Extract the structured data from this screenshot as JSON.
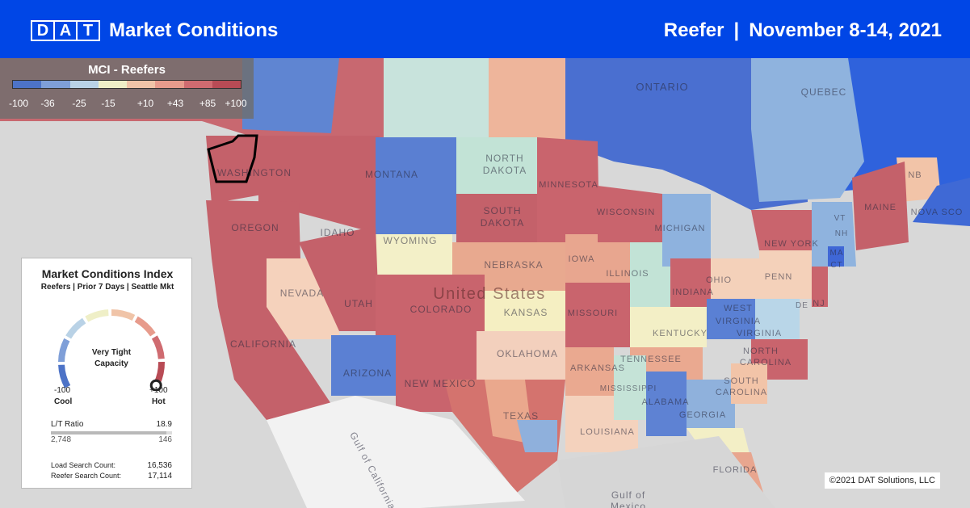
{
  "header": {
    "logo_letters": [
      "D",
      "A",
      "T"
    ],
    "title": "Market Conditions",
    "equipment": "Reefer",
    "separator": "|",
    "date_range": "November 8-14, 2021"
  },
  "legend": {
    "title": "MCI - Reefers",
    "ticks": [
      "-100",
      "-36",
      "-25",
      "-15",
      "+10",
      "+43",
      "+85",
      "+100"
    ],
    "colors": [
      "#4d73c7",
      "#7f9fd8",
      "#b9d2e6",
      "#efefc7",
      "#f0c4a8",
      "#e79b8c",
      "#cf6b70",
      "#b84b55"
    ]
  },
  "map": {
    "labels": [
      {
        "text": "ONTARIO",
        "size": 13
      },
      {
        "text": "QUEBEC",
        "size": 12
      },
      {
        "text": "NORTH",
        "size": 12
      },
      {
        "text": "DAKOTA",
        "size": 12
      },
      {
        "text": "WASHINGTON",
        "size": 12
      },
      {
        "text": "MONTANA",
        "size": 12
      },
      {
        "text": "MINNESOTA",
        "size": 11
      },
      {
        "text": "SOUTH",
        "size": 12
      },
      {
        "text": "DAKOTA",
        "size": 12
      },
      {
        "text": "WISCONSIN",
        "size": 11
      },
      {
        "text": "MICHIGAN",
        "size": 11
      },
      {
        "text": "NB",
        "size": 11
      },
      {
        "text": "MAINE",
        "size": 11
      },
      {
        "text": "NOVA SCO",
        "size": 11
      },
      {
        "text": "VT",
        "size": 10
      },
      {
        "text": "NH",
        "size": 10
      },
      {
        "text": "MA",
        "size": 10
      },
      {
        "text": "CT",
        "size": 10
      },
      {
        "text": "NEW YORK",
        "size": 11
      },
      {
        "text": "OREGON",
        "size": 12
      },
      {
        "text": "IDAHO",
        "size": 12
      },
      {
        "text": "WYOMING",
        "size": 12
      },
      {
        "text": "NEBRASKA",
        "size": 12
      },
      {
        "text": "IOWA",
        "size": 11
      },
      {
        "text": "ILLINOIS",
        "size": 11
      },
      {
        "text": "INDIANA",
        "size": 11
      },
      {
        "text": "OHIO",
        "size": 11
      },
      {
        "text": "PENN",
        "size": 11
      },
      {
        "text": "NJ",
        "size": 11
      },
      {
        "text": "DE",
        "size": 10
      },
      {
        "text": "NEVADA",
        "size": 12
      },
      {
        "text": "UTAH",
        "size": 12
      },
      {
        "text": "COLORADO",
        "size": 12
      },
      {
        "text": "United States",
        "size": 20
      },
      {
        "text": "KANSAS",
        "size": 12
      },
      {
        "text": "MISSOURI",
        "size": 11
      },
      {
        "text": "WEST",
        "size": 11
      },
      {
        "text": "VIRGINIA",
        "size": 11
      },
      {
        "text": "VIRGINIA",
        "size": 11
      },
      {
        "text": "KENTUCKY",
        "size": 11
      },
      {
        "text": "NORTH",
        "size": 11
      },
      {
        "text": "CAROLINA",
        "size": 11
      },
      {
        "text": "CALIFORNIA",
        "size": 12
      },
      {
        "text": "ARIZONA",
        "size": 12
      },
      {
        "text": "NEW MEXICO",
        "size": 12
      },
      {
        "text": "OKLAHOMA",
        "size": 12
      },
      {
        "text": "ARKANSAS",
        "size": 11
      },
      {
        "text": "TENNESSEE",
        "size": 11
      },
      {
        "text": "SOUTH",
        "size": 11
      },
      {
        "text": "CAROLINA",
        "size": 11
      },
      {
        "text": "MISSISSIPPI",
        "size": 10
      },
      {
        "text": "ALABAMA",
        "size": 11
      },
      {
        "text": "GEORGIA",
        "size": 11
      },
      {
        "text": "TEXAS",
        "size": 12
      },
      {
        "text": "LOUISIANA",
        "size": 11
      },
      {
        "text": "FLORIDA",
        "size": 11
      },
      {
        "text": "Gulf of California",
        "size": 12
      },
      {
        "text": "Gulf of",
        "size": 12
      },
      {
        "text": "Mexico",
        "size": 12
      }
    ]
  },
  "copyright": "©2021 DAT Solutions, LLC",
  "panel": {
    "title": "Market Conditions Index",
    "subtitle": "Reefers | Prior 7 Days | Seattle Mkt",
    "status_line1": "Very Tight",
    "status_line2": "Capacity",
    "min_label": "-100",
    "min_caption": "Cool",
    "max_label": "+100",
    "max_caption": "Hot",
    "gauge_value": 100,
    "lt_ratio_label": "L/T Ratio",
    "lt_ratio_value": "18.9",
    "lt_left": "2,748",
    "lt_right": "146",
    "lt_fill": 0.95,
    "load_search_label": "Load Search Count:",
    "load_search_value": "16,536",
    "reefer_search_label": "Reefer Search Count:",
    "reefer_search_value": "17,114",
    "gauge_colors": [
      "#4d73c7",
      "#7f9fd8",
      "#b9d2e6",
      "#efefc7",
      "#f0c4a8",
      "#e79b8c",
      "#cf6b70",
      "#b84b55"
    ]
  }
}
